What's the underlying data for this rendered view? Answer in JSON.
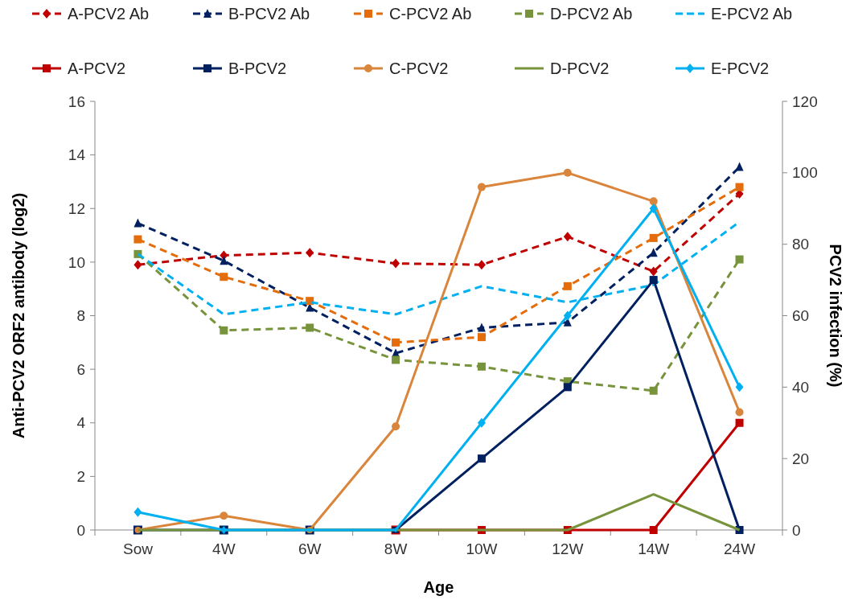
{
  "chart_data": {
    "type": "line",
    "xlabel": "Age",
    "ylabel": "Anti-PCV2 ORF2 antibody (log2)",
    "y2label": "PCV2 infection (%)",
    "categories": [
      "Sow",
      "4W",
      "6W",
      "8W",
      "10W",
      "12W",
      "14W",
      "24W"
    ],
    "ylim": [
      0,
      16
    ],
    "yticks": [
      0,
      2,
      4,
      6,
      8,
      10,
      12,
      14,
      16
    ],
    "y2lim": [
      0,
      120
    ],
    "y2ticks": [
      0,
      20,
      40,
      60,
      80,
      100,
      120
    ],
    "legend": "top",
    "grid": false,
    "series": [
      {
        "name": "A-PCV2 Ab",
        "color": "#c00000",
        "marker": "diamond",
        "line_style": "dashed",
        "values": [
          9.9,
          10.25,
          10.35,
          9.95,
          9.9,
          10.95,
          9.65,
          12.55
        ]
      },
      {
        "name": "B-PCV2 Ab",
        "color": "#002060",
        "marker": "triangle",
        "line_style": "dashed",
        "values": [
          11.45,
          10.05,
          8.3,
          6.6,
          7.55,
          7.75,
          10.35,
          13.55
        ]
      },
      {
        "name": "C-PCV2 Ab",
        "color": "#e46c0a",
        "marker": "square",
        "line_style": "dashed",
        "values": [
          10.85,
          9.45,
          8.55,
          7.0,
          7.2,
          9.1,
          10.9,
          12.8
        ]
      },
      {
        "name": "D-PCV2 Ab",
        "color": "#77933c",
        "marker": "square",
        "line_style": "dashed",
        "values": [
          10.3,
          7.45,
          7.55,
          6.35,
          6.1,
          5.55,
          5.2,
          10.1
        ]
      },
      {
        "name": "E-PCV2 Ab",
        "color": "#00b0f0",
        "marker": "none",
        "line_style": "dashed",
        "values": [
          10.3,
          8.05,
          8.5,
          8.05,
          9.1,
          8.5,
          9.15,
          11.5
        ]
      },
      {
        "name": "A-PCV2",
        "color": "#c00000",
        "marker": "square",
        "line_style": "solid",
        "axis": "y2",
        "values": [
          null,
          null,
          null,
          0,
          0,
          0,
          0,
          30
        ]
      },
      {
        "name": "B-PCV2",
        "color": "#002060",
        "marker": "square",
        "line_style": "solid",
        "axis": "y2",
        "values": [
          0,
          0,
          0,
          0,
          20,
          40,
          70,
          0
        ]
      },
      {
        "name": "C-PCV2",
        "color": "#d9853b",
        "marker": "circle",
        "line_style": "solid",
        "axis": "y2",
        "values": [
          0,
          4,
          0,
          29,
          96,
          100,
          92,
          33
        ]
      },
      {
        "name": "D-PCV2",
        "color": "#77933c",
        "marker": "none",
        "line_style": "solid",
        "axis": "y2",
        "values": [
          0,
          0,
          0,
          0,
          0,
          0,
          10,
          0
        ]
      },
      {
        "name": "E-PCV2",
        "color": "#00b0f0",
        "marker": "diamond",
        "line_style": "solid",
        "axis": "y2",
        "values": [
          5,
          0,
          0,
          0,
          30,
          60,
          90,
          40
        ]
      }
    ]
  }
}
